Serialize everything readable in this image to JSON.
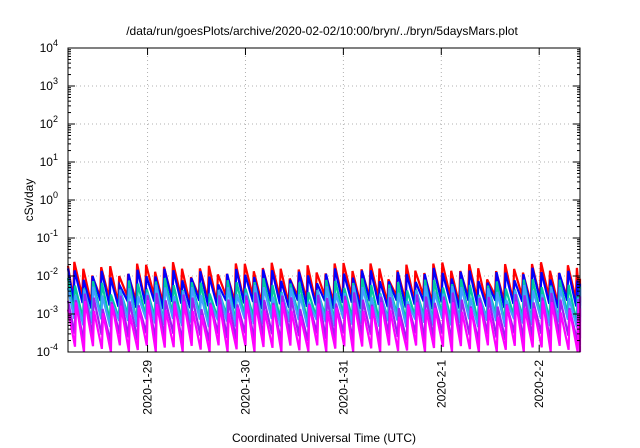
{
  "chart_data": {
    "type": "line",
    "title": "/data/run/goesPlots/archive/2020-02-02/10:00/bryn/../bryn/5daysMars.plot",
    "xlabel": "Coordinated Universal Time (UTC)",
    "ylabel": "cSv/day",
    "x_range": [
      "2020-01-28T04:30",
      "2020-02-02T10:00"
    ],
    "ylim": [
      0.0001,
      10000
    ],
    "yscale": "log",
    "grid": true,
    "y_ticks": [
      {
        "base": "10",
        "exp": "-4",
        "value": 0.0001
      },
      {
        "base": "10",
        "exp": "-3",
        "value": 0.001
      },
      {
        "base": "10",
        "exp": "-2",
        "value": 0.01
      },
      {
        "base": "10",
        "exp": "-1",
        "value": 0.1
      },
      {
        "base": "10",
        "exp": "0",
        "value": 1
      },
      {
        "base": "10",
        "exp": "1",
        "value": 10
      },
      {
        "base": "10",
        "exp": "2",
        "value": 100
      },
      {
        "base": "10",
        "exp": "3",
        "value": 1000
      },
      {
        "base": "10",
        "exp": "4",
        "value": 10000
      }
    ],
    "x_ticks": [
      {
        "label": "2020-1-29",
        "value": "2020-01-29T00:00"
      },
      {
        "label": "2020-1-30",
        "value": "2020-01-30T00:00"
      },
      {
        "label": "2020-1-31",
        "value": "2020-01-31T00:00"
      },
      {
        "label": "2020-2-1",
        "value": "2020-02-01T00:00"
      },
      {
        "label": "2020-2-2",
        "value": "2020-02-02T00:00"
      }
    ],
    "sawtooth_period_hours": 2.2,
    "series": [
      {
        "color": "#ff0000",
        "peak": 0.016,
        "trough": 0.0025
      },
      {
        "color": "#0000ff",
        "peak": 0.011,
        "trough": 0.0018
      },
      {
        "color": "#00c8a0",
        "peak": 0.006,
        "trough": 0.0008
      },
      {
        "color": "#40a0ff",
        "peak": 0.004,
        "trough": 0.0006
      },
      {
        "color": "#a020f0",
        "peak": 0.0025,
        "trough": 0.00025
      },
      {
        "color": "#ff00ff",
        "peak": 0.0016,
        "trough": 0.00012
      }
    ]
  }
}
